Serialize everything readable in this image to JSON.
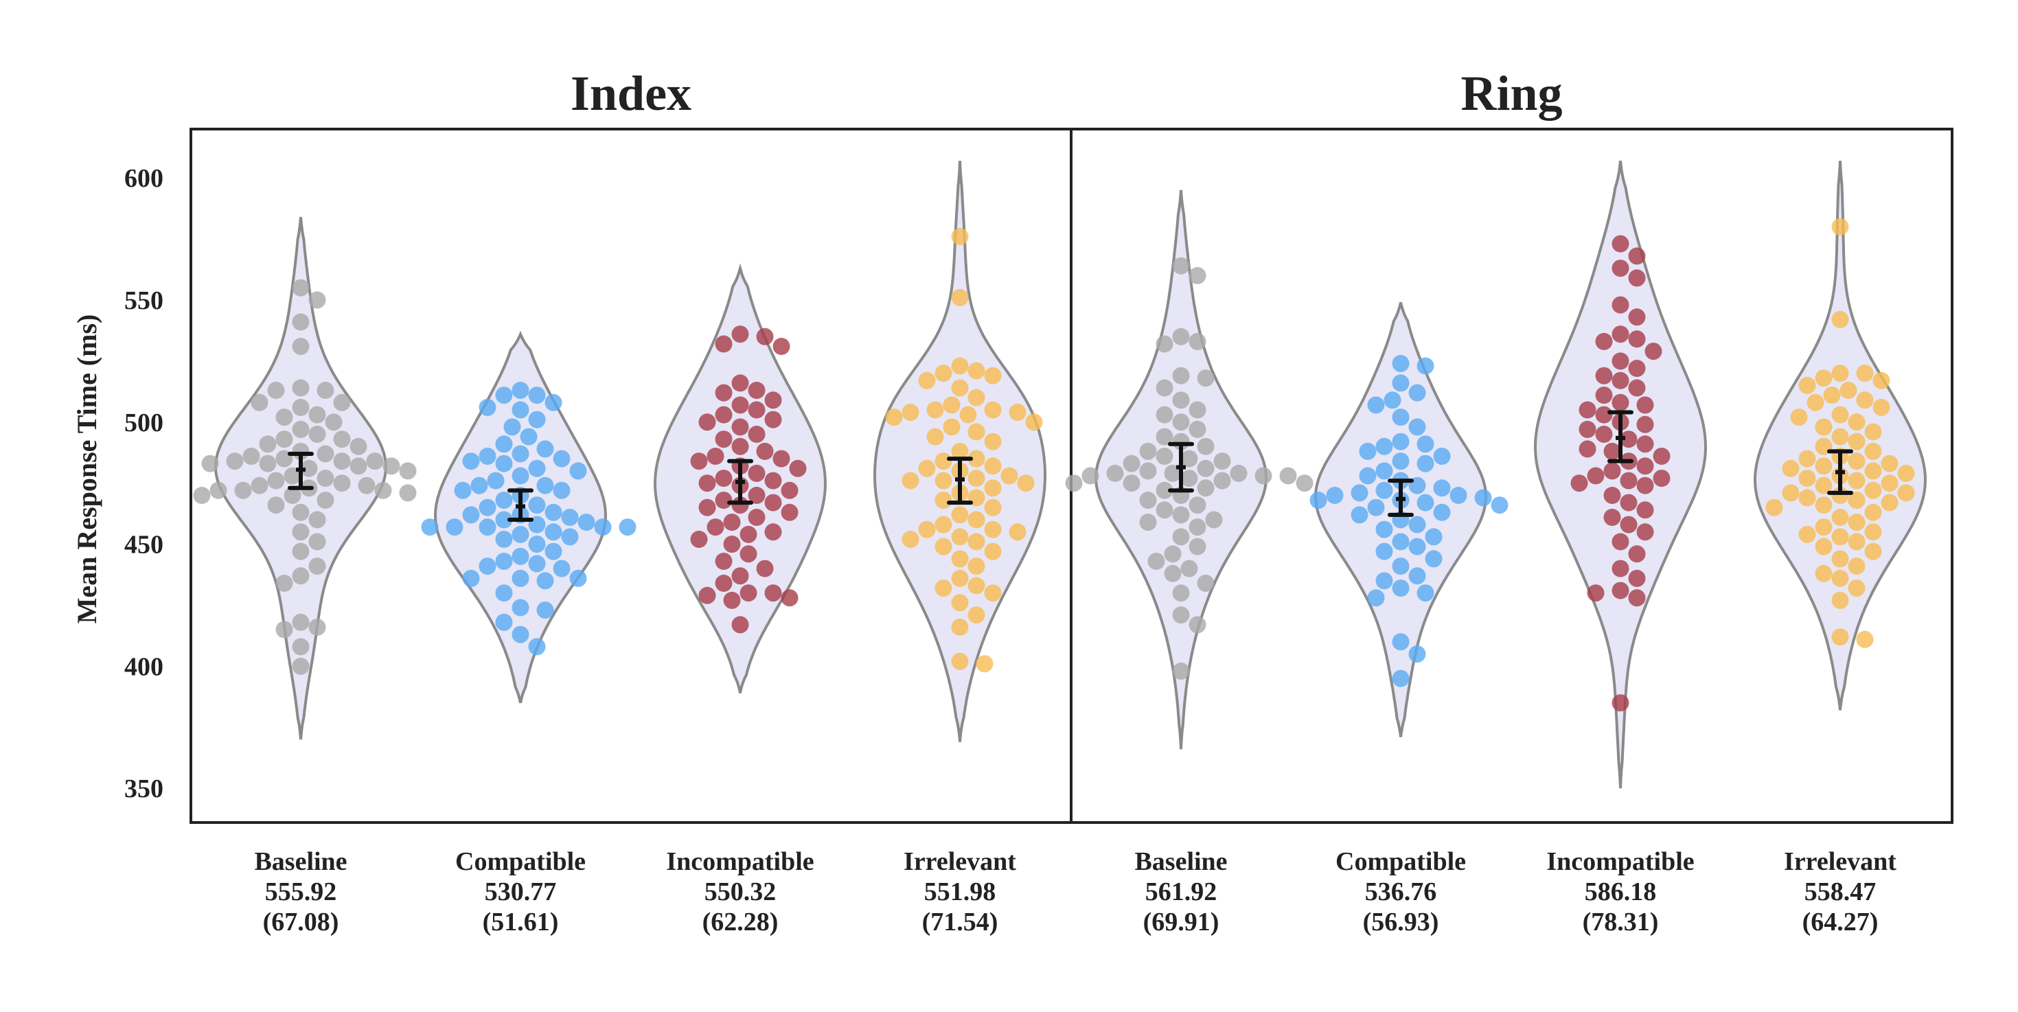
{
  "chart_data": {
    "type": "violin",
    "ylabel": "Mean Response Time (ms)",
    "ylim": [
      336,
      620
    ],
    "yticks": [
      350,
      400,
      450,
      500,
      550,
      600
    ],
    "grid": false,
    "colors": {
      "Baseline": "#a9a9a9",
      "Compatible": "#5aaaf2",
      "Incompatible": "#a83c48",
      "Irrelevant": "#f7bb52",
      "violin_fill": "#e6e6f6",
      "violin_edge": "#8a8a8a",
      "errorbar": "#111111"
    },
    "panels": [
      {
        "title": "Index",
        "groups": [
          {
            "category": "Baseline",
            "stat_mean": "555.92",
            "stat_sd": "(67.08)",
            "mean": 480.5,
            "ci": [
              473,
              487
            ],
            "kde_range": [
              370,
              584
            ],
            "median": 482,
            "spread": 19,
            "points": [
              555,
              550,
              541,
              531,
              514,
              513,
              513,
              508,
              508,
              506,
              503,
              502,
              500,
              497,
              495,
              493,
              493,
              491,
              490,
              488,
              487,
              486,
              485,
              484,
              484,
              484,
              483,
              483,
              482,
              482,
              481,
              480,
              478,
              477,
              476,
              475,
              474,
              474,
              473,
              472,
              472,
              472,
              471,
              470,
              470,
              468,
              466,
              463,
              460,
              455,
              451,
              447,
              441,
              437,
              434,
              418,
              416,
              415,
              408,
              400
            ]
          },
          {
            "category": "Compatible",
            "stat_mean": "530.77",
            "stat_sd": "(51.61)",
            "mean": 465.5,
            "ci": [
              460,
              472
            ],
            "kde_range": [
              385,
              536
            ],
            "median": 465,
            "spread": 17,
            "points": [
              513,
              511,
              511,
              508,
              506,
              505,
              501,
              498,
              494,
              491,
              489,
              487,
              486,
              485,
              484,
              483,
              481,
              480,
              478,
              476,
              474,
              474,
              472,
              472,
              470,
              468,
              466,
              465,
              463,
              462,
              462,
              461,
              460,
              459,
              458,
              457,
              457,
              457,
              457,
              457,
              455,
              454,
              453,
              452,
              450,
              447,
              445,
              443,
              442,
              441,
              440,
              436,
              436,
              436,
              435,
              430,
              424,
              423,
              418,
              413,
              408
            ]
          },
          {
            "category": "Incompatible",
            "stat_mean": "550.32",
            "stat_sd": "(62.28)",
            "mean": 475.5,
            "ci": [
              467,
              484
            ],
            "kde_range": [
              389,
              563
            ],
            "median": 477,
            "spread": 18,
            "points": [
              536,
              535,
              532,
              531,
              516,
              513,
              512,
              509,
              507,
              505,
              503,
              501,
              500,
              498,
              495,
              493,
              490,
              488,
              486,
              485,
              484,
              482,
              481,
              479,
              477,
              476,
              475,
              474,
              472,
              470,
              468,
              467,
              466,
              465,
              463,
              461,
              459,
              457,
              455,
              454,
              452,
              450,
              446,
              443,
              440,
              437,
              434,
              430,
              430,
              429,
              428,
              427,
              417
            ]
          },
          {
            "category": "Irrelevant",
            "stat_mean": "551.98",
            "stat_sd": "(71.54)",
            "mean": 476.5,
            "ci": [
              467,
              485
            ],
            "kde_range": [
              369,
              607
            ],
            "median": 476,
            "spread": 18,
            "points": [
              576,
              551,
              523,
              521,
              520,
              519,
              517,
              514,
              510,
              507,
              505,
              505,
              504,
              504,
              503,
              502,
              500,
              498,
              496,
              494,
              492,
              488,
              485,
              484,
              482,
              481,
              480,
              478,
              477,
              476,
              476,
              475,
              473,
              471,
              469,
              468,
              465,
              462,
              460,
              458,
              456,
              456,
              455,
              453,
              452,
              451,
              449,
              447,
              444,
              441,
              436,
              433,
              432,
              430,
              426,
              421,
              416,
              402,
              401
            ]
          }
        ]
      },
      {
        "title": "Ring",
        "groups": [
          {
            "category": "Baseline",
            "stat_mean": "561.92",
            "stat_sd": "(69.91)",
            "mean": 481.5,
            "ci": [
              472,
              491
            ],
            "kde_range": [
              366,
              595
            ],
            "median": 480,
            "spread": 19,
            "points": [
              564,
              560,
              535,
              533,
              532,
              519,
              518,
              514,
              509,
              505,
              503,
              500,
              497,
              494,
              492,
              490,
              488,
              486,
              485,
              484,
              483,
              481,
              480,
              479,
              479,
              479,
              478,
              478,
              478,
              477,
              476,
              475,
              475,
              475,
              473,
              472,
              470,
              468,
              466,
              464,
              462,
              460,
              459,
              457,
              453,
              449,
              446,
              443,
              440,
              438,
              434,
              430,
              421,
              417,
              398
            ]
          },
          {
            "category": "Compatible",
            "stat_mean": "536.76",
            "stat_sd": "(56.93)",
            "mean": 468.5,
            "ci": [
              462,
              476
            ],
            "kde_range": [
              371,
              549
            ],
            "median": 468,
            "spread": 17,
            "points": [
              524,
              523,
              516,
              512,
              509,
              507,
              502,
              498,
              492,
              491,
              490,
              488,
              486,
              484,
              483,
              480,
              478,
              476,
              474,
              473,
              472,
              471,
              470,
              470,
              469,
              468,
              468,
              467,
              466,
              465,
              463,
              462,
              460,
              458,
              456,
              453,
              451,
              449,
              447,
              444,
              441,
              437,
              435,
              432,
              430,
              428,
              410,
              405,
              395
            ]
          },
          {
            "category": "Incompatible",
            "stat_mean": "586.18",
            "stat_sd": "(78.31)",
            "mean": 493.5,
            "ci": [
              484,
              504
            ],
            "kde_range": [
              350,
              607
            ],
            "median": 492,
            "spread": 20,
            "points": [
              573,
              568,
              563,
              559,
              548,
              543,
              536,
              534,
              533,
              529,
              525,
              522,
              519,
              517,
              514,
              511,
              508,
              507,
              505,
              503,
              500,
              499,
              497,
              495,
              493,
              491,
              489,
              488,
              486,
              484,
              482,
              480,
              478,
              477,
              476,
              475,
              474,
              470,
              467,
              464,
              461,
              458,
              455,
              451,
              446,
              440,
              436,
              431,
              430,
              428,
              385
            ]
          },
          {
            "category": "Irrelevant",
            "stat_mean": "558.47",
            "stat_sd": "(64.27)",
            "mean": 479.5,
            "ci": [
              471,
              488
            ],
            "kde_range": [
              382,
              607
            ],
            "median": 479,
            "spread": 19,
            "points": [
              580,
              542,
              520,
              520,
              518,
              517,
              515,
              513,
              511,
              509,
              508,
              506,
              503,
              502,
              500,
              498,
              496,
              494,
              492,
              490,
              488,
              486,
              485,
              484,
              483,
              482,
              481,
              480,
              479,
              478,
              477,
              476,
              475,
              474,
              472,
              471,
              471,
              470,
              469,
              468,
              467,
              466,
              465,
              463,
              461,
              459,
              457,
              455,
              454,
              453,
              451,
              449,
              447,
              444,
              441,
              438,
              436,
              432,
              427,
              412,
              411
            ]
          }
        ]
      }
    ]
  }
}
